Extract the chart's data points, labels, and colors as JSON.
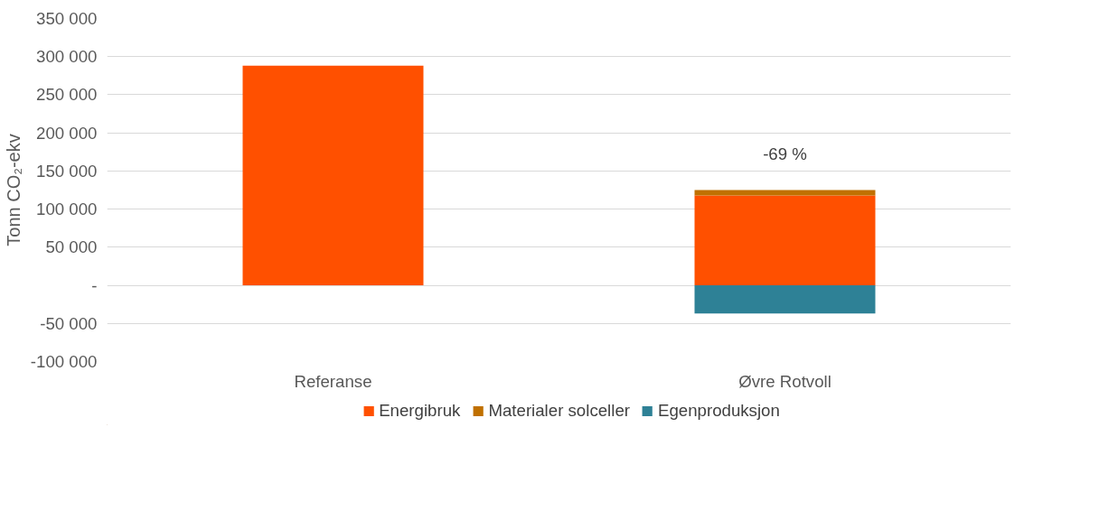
{
  "chart_data": {
    "type": "bar",
    "stacked": true,
    "ylabel": "Tonn CO₂-ekv",
    "categories": [
      "Referanse",
      "Øvre Rotvoll"
    ],
    "series": [
      {
        "name": "Energibruk",
        "color": "#ff5000",
        "values": [
          288000,
          118000
        ]
      },
      {
        "name": "Materialer solceller",
        "color": "#c07000",
        "values": [
          null,
          7000
        ]
      },
      {
        "name": "Egenproduksjon",
        "color": "#2e8196",
        "values": [
          null,
          -37000
        ]
      }
    ],
    "ylim": [
      -100000,
      350000
    ],
    "yticks": [
      {
        "value": -100000,
        "label": "-100 000"
      },
      {
        "value": -50000,
        "label": "-50 000"
      },
      {
        "value": 0,
        "label": "-"
      },
      {
        "value": 50000,
        "label": "50 000"
      },
      {
        "value": 100000,
        "label": "100 000"
      },
      {
        "value": 150000,
        "label": "150 000"
      },
      {
        "value": 200000,
        "label": "200 000"
      },
      {
        "value": 250000,
        "label": "250 000"
      },
      {
        "value": 300000,
        "label": "300 000"
      },
      {
        "value": 350000,
        "label": "350 000"
      }
    ],
    "annotations": [
      {
        "text": "-69 %",
        "x": "Øvre Rotvoll",
        "y": 125000
      }
    ],
    "grid": "y",
    "legend": "bottom"
  }
}
